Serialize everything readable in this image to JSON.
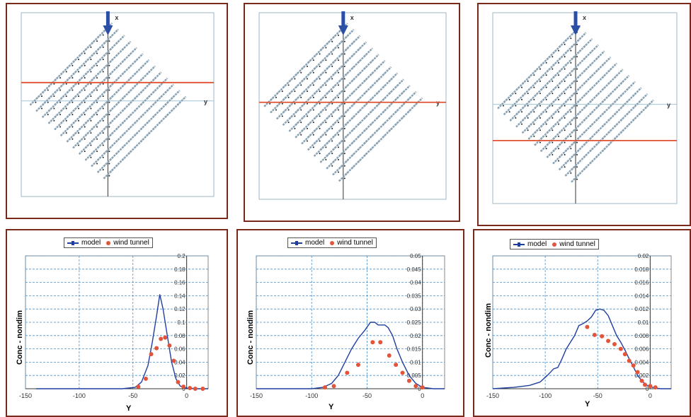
{
  "panels": [
    {
      "section_y": 30
    },
    {
      "section_y": 0
    },
    {
      "section_y": -57
    }
  ],
  "legend": {
    "model": "model",
    "wind_tunnel": "wind tunnel"
  },
  "chart_data": [
    {
      "type": "line",
      "ylabel": "Conc - nondim",
      "xlabel": "Y",
      "xlim": [
        -150,
        20
      ],
      "ylim": [
        0,
        0.2
      ],
      "yticks": [
        0,
        0.02,
        0.04,
        0.06,
        0.08,
        0.1,
        0.12,
        0.14,
        0.16,
        0.18,
        0.2
      ],
      "ytick_labels": [
        "0",
        "0.02",
        "0.04",
        "0.06",
        "0.08",
        "0.1",
        "0.12",
        "0.14",
        "0.16",
        "0.18",
        "0.2"
      ],
      "xticks": [
        -150,
        -100,
        -50,
        0
      ],
      "xtick_labels": [
        "-150",
        "-100",
        "-50",
        "0"
      ],
      "series": [
        {
          "name": "model",
          "x": [
            -140,
            -60,
            -48,
            -42,
            -36,
            -32,
            -28,
            -25,
            -22,
            -18,
            -14,
            -10,
            -6,
            0,
            10,
            20
          ],
          "y": [
            0,
            0,
            0.002,
            0.01,
            0.035,
            0.07,
            0.11,
            0.142,
            0.12,
            0.08,
            0.04,
            0.015,
            0.004,
            0.001,
            0,
            0
          ]
        },
        {
          "name": "wind tunnel",
          "x": [
            -45,
            -38,
            -33,
            -28,
            -24,
            -20,
            -16,
            -12,
            -8,
            -3,
            3,
            8,
            15
          ],
          "y": [
            0.003,
            0.015,
            0.052,
            0.061,
            0.075,
            0.077,
            0.065,
            0.042,
            0.01,
            0.003,
            0.001,
            0,
            0
          ]
        }
      ]
    },
    {
      "type": "line",
      "ylabel": "Conc - nondim",
      "xlabel": "Y",
      "xlim": [
        -150,
        20
      ],
      "ylim": [
        0,
        0.05
      ],
      "yticks": [
        0,
        0.005,
        0.01,
        0.015,
        0.02,
        0.025,
        0.03,
        0.035,
        0.04,
        0.045,
        0.05
      ],
      "ytick_labels": [
        "0",
        "0.005",
        "0.01",
        "0.015",
        "0.02",
        "0.025",
        "0.03",
        "0.035",
        "0.04",
        "0.045",
        "0.05"
      ],
      "xticks": [
        -150,
        -100,
        -50,
        0
      ],
      "xtick_labels": [
        "-150",
        "-100",
        "-50",
        "0"
      ],
      "series": [
        {
          "name": "model",
          "x": [
            -150,
            -100,
            -90,
            -82,
            -76,
            -70,
            -64,
            -58,
            -52,
            -47,
            -43,
            -40,
            -37,
            -34,
            -31,
            -27,
            -23,
            -18,
            -12,
            -6,
            0,
            10,
            20
          ],
          "y": [
            0,
            0,
            0.0005,
            0.002,
            0.005,
            0.01,
            0.015,
            0.019,
            0.022,
            0.025,
            0.025,
            0.024,
            0.024,
            0.024,
            0.023,
            0.02,
            0.015,
            0.01,
            0.005,
            0.002,
            0.0005,
            0,
            0
          ]
        },
        {
          "name": "wind tunnel",
          "x": [
            -88,
            -80,
            -68,
            -58,
            -45,
            -38,
            -30,
            -24,
            -18,
            -12,
            -6,
            0
          ],
          "y": [
            0.0005,
            0.001,
            0.006,
            0.009,
            0.0175,
            0.0175,
            0.0125,
            0.009,
            0.006,
            0.003,
            0.001,
            0.0005
          ]
        }
      ]
    },
    {
      "type": "line",
      "ylabel": "Conc - nondim",
      "xlabel": "Y",
      "xlim": [
        -150,
        20
      ],
      "ylim": [
        0,
        0.02
      ],
      "yticks": [
        0,
        0.002,
        0.004,
        0.006,
        0.008,
        0.01,
        0.012,
        0.014,
        0.016,
        0.018,
        0.02
      ],
      "ytick_labels": [
        "0",
        "0.002",
        "0.004",
        "0.006",
        "0.008",
        "0.01",
        "0.012",
        "0.014",
        "0.016",
        "0.018",
        "0.02"
      ],
      "xticks": [
        -150,
        -100,
        -50,
        0
      ],
      "xtick_labels": [
        "-150",
        "-100",
        "-50",
        "0"
      ],
      "series": [
        {
          "name": "model",
          "x": [
            -150,
            -130,
            -115,
            -105,
            -98,
            -92,
            -88,
            -84,
            -80,
            -76,
            -72,
            -68,
            -64,
            -60,
            -56,
            -52,
            -48,
            -44,
            -40,
            -36,
            -32,
            -28,
            -24,
            -20,
            -16,
            -12,
            -8,
            -4,
            0,
            5,
            10,
            20
          ],
          "y": [
            0,
            0.0002,
            0.0005,
            0.001,
            0.002,
            0.003,
            0.0032,
            0.0045,
            0.006,
            0.007,
            0.008,
            0.0095,
            0.0098,
            0.0102,
            0.0108,
            0.0118,
            0.012,
            0.0118,
            0.011,
            0.0095,
            0.008,
            0.007,
            0.0058,
            0.0045,
            0.0033,
            0.002,
            0.0012,
            0.0006,
            0.0003,
            0.0001,
            0,
            0
          ]
        },
        {
          "name": "wind tunnel",
          "x": [
            -60,
            -53,
            -46,
            -40,
            -34,
            -28,
            -24,
            -20,
            -16,
            -12,
            -8,
            -5,
            0,
            5
          ],
          "y": [
            0.0093,
            0.0081,
            0.0079,
            0.0072,
            0.0067,
            0.006,
            0.0052,
            0.0042,
            0.0035,
            0.0025,
            0.0012,
            0.0006,
            0.0004,
            0.0002
          ]
        }
      ]
    }
  ]
}
